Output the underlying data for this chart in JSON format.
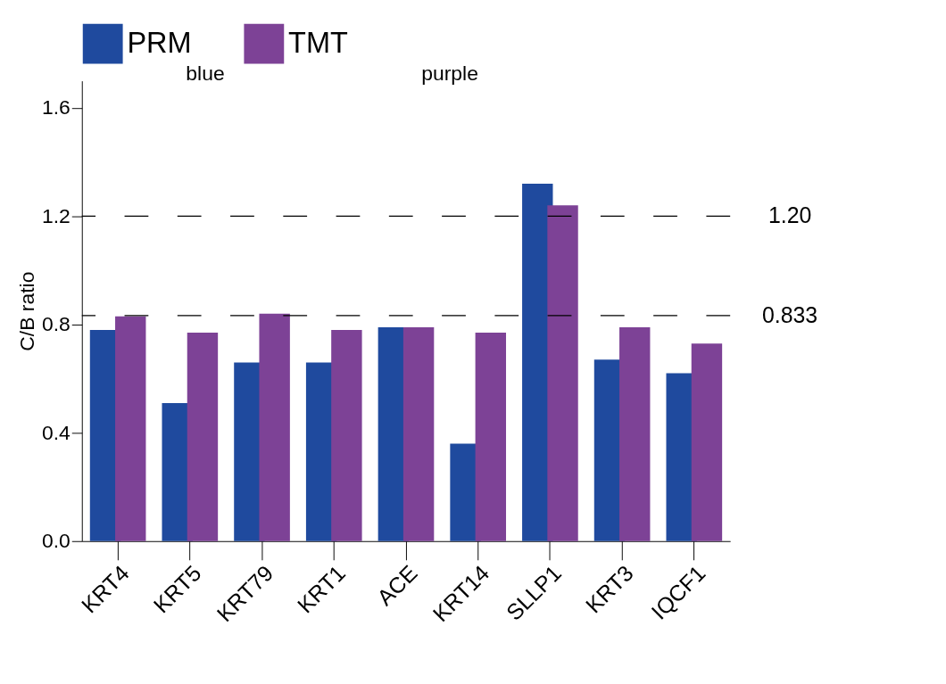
{
  "chart_data": {
    "type": "bar",
    "ylabel": "C/B ratio",
    "categories": [
      "KRT4",
      "KRT5",
      "KRT79",
      "KRT1",
      "ACE",
      "KRT14",
      "SLLP1",
      "KRT3",
      "IQCF1"
    ],
    "series": [
      {
        "name": "PRM",
        "color": "#1f4a9e",
        "values": [
          0.78,
          0.51,
          0.66,
          0.66,
          0.79,
          0.36,
          1.32,
          0.67,
          0.62
        ]
      },
      {
        "name": "TMT",
        "color": "#7d4296",
        "values": [
          0.83,
          0.77,
          0.84,
          0.78,
          0.79,
          0.77,
          1.24,
          0.79,
          0.73
        ]
      }
    ],
    "ylim": [
      0,
      1.7
    ],
    "yticks": [
      {
        "value": 0,
        "label": "0.0"
      },
      {
        "value": 0.4,
        "label": "0.4"
      },
      {
        "value": 0.8,
        "label": "0.8"
      },
      {
        "value": 1.2,
        "label": "1.2"
      },
      {
        "value": 1.6,
        "label": "1.6"
      }
    ],
    "ref_lines": [
      {
        "axis": "y",
        "value": 1.2,
        "label": "1.20",
        "line_style": "dashed"
      },
      {
        "axis": "y",
        "value": 0.833,
        "label": "0.833",
        "line_style": "dashed"
      }
    ],
    "annotations": [
      "blue",
      "purple"
    ],
    "legend": "top",
    "grid": false
  }
}
